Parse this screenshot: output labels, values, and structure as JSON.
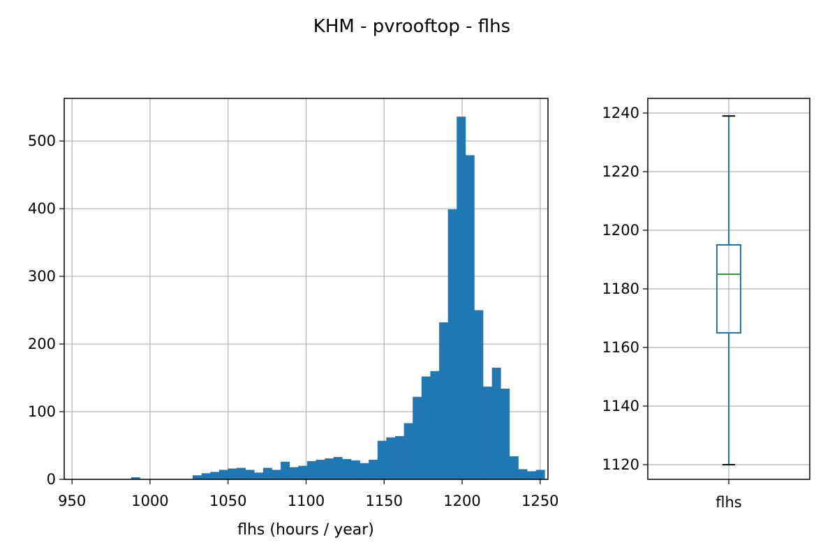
{
  "chart_data": [
    {
      "type": "bar",
      "subtype": "histogram",
      "title": "KHM - pvrooftop - flhs",
      "xlabel": "flhs (hours / year)",
      "ylabel": "",
      "xlim": [
        945,
        1255
      ],
      "ylim": [
        0,
        563
      ],
      "xticks": [
        950,
        1000,
        1050,
        1100,
        1150,
        1200,
        1250
      ],
      "yticks": [
        0,
        100,
        200,
        300,
        400,
        500
      ],
      "grid": true,
      "color": "#1f77b4",
      "bin_start": 954,
      "bin_width": 5.64,
      "counts": [
        0,
        0,
        0,
        0,
        0,
        0,
        3,
        0,
        0,
        0,
        0,
        0,
        0,
        6,
        9,
        11,
        14,
        16,
        17,
        14,
        10,
        17,
        14,
        26,
        18,
        20,
        27,
        29,
        31,
        33,
        30,
        28,
        24,
        29,
        57,
        62,
        64,
        83,
        122,
        152,
        160,
        232,
        399,
        536,
        479,
        250,
        137,
        165,
        134,
        34,
        15,
        12,
        14
      ]
    },
    {
      "type": "box",
      "category": "flhs",
      "ylim": [
        1115,
        1245
      ],
      "yticks": [
        1120,
        1140,
        1160,
        1180,
        1200,
        1220,
        1240
      ],
      "grid": true,
      "whisker_low": 1120,
      "q1": 1165,
      "median": 1185,
      "q3": 1195,
      "whisker_high": 1239,
      "box_color": "#1f77b4",
      "median_color": "#2ca02c"
    }
  ]
}
